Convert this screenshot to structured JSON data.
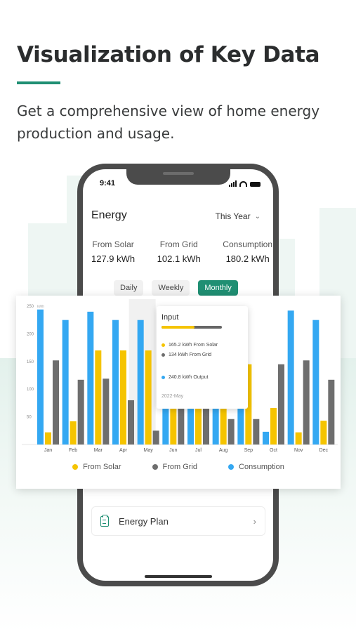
{
  "headline": "Visualization of Key Data",
  "subtitle": "Get a comprehensive view of home energy production and usage.",
  "colors": {
    "accent": "#1f8f73",
    "solar": "#f5c400",
    "grid": "#6e6e6e",
    "consumption": "#34a8f2"
  },
  "phone": {
    "status_time": "9:41",
    "energy_title": "Energy",
    "period_select": "This Year",
    "stats": [
      {
        "label": "From Solar",
        "value": "127.9 kWh"
      },
      {
        "label": "From Grid",
        "value": "102.1 kWh"
      },
      {
        "label": "Consumption",
        "value": "180.2 kWh"
      }
    ],
    "toggles": [
      {
        "label": "Daily",
        "active": false
      },
      {
        "label": "Weekly",
        "active": false
      },
      {
        "label": "Monthly",
        "active": true
      }
    ],
    "plan_label": "Energy Plan"
  },
  "tooltip": {
    "title": "Input",
    "solar_fraction": 0.552,
    "solar_line": "165.2 kWh From Solar",
    "grid_line": "134 kWh From Grid",
    "output_line": "240.8 kWh Output",
    "date": "2022-May"
  },
  "legend": [
    "From Solar",
    "From Grid",
    "Consumption"
  ],
  "chart_data": {
    "type": "bar",
    "categories": [
      "Jan",
      "Feb",
      "Mar",
      "Apr",
      "May",
      "Jun",
      "Jul",
      "Aug",
      "Sep",
      "Oct",
      "Nov",
      "Dec"
    ],
    "y_ticks": [
      50,
      100,
      150,
      200,
      250
    ],
    "y_unit": "kWh",
    "ylim": [
      0,
      250
    ],
    "series": [
      {
        "name": "Consumption",
        "values": [
          244,
          225,
          240,
          225,
          225,
          130,
          130,
          70,
          95,
          23,
          242,
          225
        ]
      },
      {
        "name": "From Solar",
        "values": [
          22,
          42,
          170,
          170,
          170,
          100,
          100,
          95,
          145,
          66,
          22,
          43
        ]
      },
      {
        "name": "From Grid",
        "values": [
          152,
          117,
          119,
          80,
          25,
          95,
          95,
          46,
          46,
          145,
          152,
          117
        ]
      }
    ],
    "legend_position": "bottom",
    "grid": false
  }
}
